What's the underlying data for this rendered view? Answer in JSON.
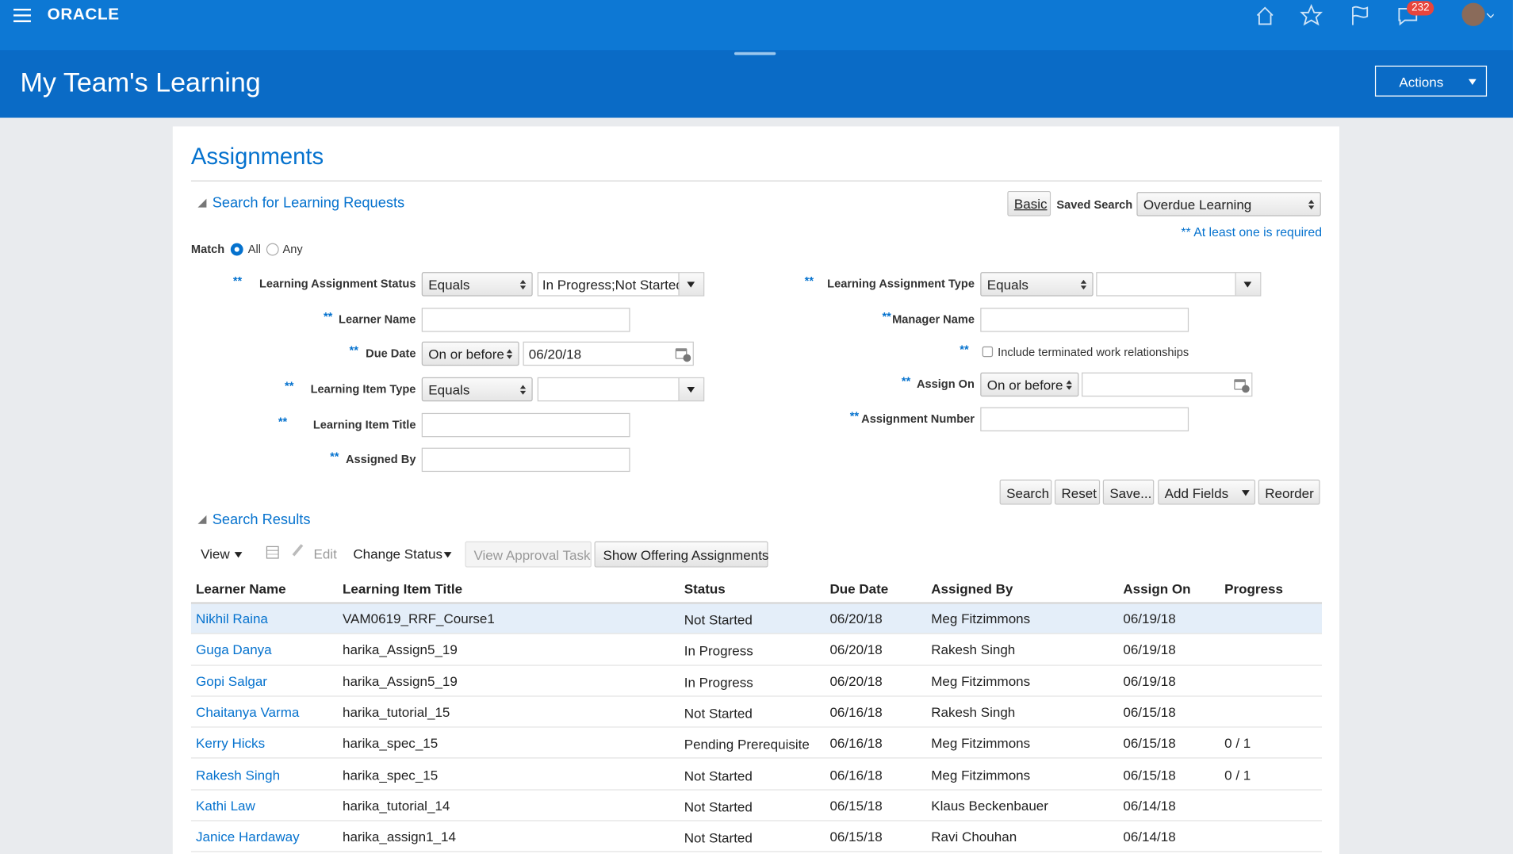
{
  "header": {
    "logo": "ORACLE",
    "notification_count": "232"
  },
  "page": {
    "title": "My Team's Learning",
    "actions": "Actions"
  },
  "panel": {
    "title": "Assignments"
  },
  "search": {
    "title": "Search for Learning Requests",
    "basic": "Basic",
    "saved_search_label": "Saved Search",
    "saved_search_value": "Overdue Learning",
    "required_note": "** At least one is required",
    "match": {
      "label": "Match",
      "all": "All",
      "any": "Any"
    },
    "left_fields": [
      {
        "marker": "**",
        "label": "Learning Assignment Status",
        "operator": "Equals",
        "value": "In Progress;Not Started"
      },
      {
        "marker": "**",
        "label": "Learner Name"
      },
      {
        "marker": "**",
        "label": "Due Date",
        "operator": "On or before",
        "value": "06/20/18"
      },
      {
        "marker": "**",
        "label": "Learning Item Type",
        "operator": "Equals"
      },
      {
        "marker": "**",
        "label": "Learning Item Title"
      },
      {
        "marker": "**",
        "label": "Assigned By"
      }
    ],
    "right_fields": [
      {
        "marker": "**",
        "label": "Learning Assignment Type",
        "operator": "Equals"
      },
      {
        "marker": "**",
        "label": "Manager Name"
      },
      {
        "marker": "**",
        "label": "Include terminated work relationships"
      },
      {
        "marker": "**",
        "label": "Assign On",
        "operator": "On or before"
      },
      {
        "marker": "**",
        "label": "Assignment Number"
      }
    ],
    "buttons": [
      "Search",
      "Reset",
      "Save...",
      "Add Fields",
      "Reorder"
    ]
  },
  "results": {
    "title": "Search Results",
    "toolbar": {
      "view": "View",
      "edit": "Edit",
      "change_status": "Change Status",
      "view_approval_task": "View Approval Task",
      "show_offering": "Show Offering Assignments"
    },
    "table": {
      "columns": [
        "Learner Name",
        "Learning Item Title",
        "Status",
        "Due Date",
        "Assigned By",
        "Assign On",
        "Progress"
      ],
      "rows": [
        [
          "Nikhil Raina",
          "VAM0619_RRF_Course1",
          "Not Started",
          "06/20/18",
          "Meg Fitzimmons",
          "06/19/18",
          null
        ],
        [
          "Guga Danya",
          "harika_Assign5_19",
          "In Progress",
          "06/20/18",
          "Rakesh Singh",
          "06/19/18",
          null
        ],
        [
          "Gopi Salgar",
          "harika_Assign5_19",
          "In Progress",
          "06/20/18",
          "Meg Fitzimmons",
          "06/19/18",
          null
        ],
        [
          "Chaitanya Varma",
          "harika_tutorial_15",
          "Not Started",
          "06/16/18",
          "Rakesh Singh",
          "06/15/18",
          null
        ],
        [
          "Kerry Hicks",
          "harika_spec_15",
          "Pending Prerequisite",
          "06/16/18",
          "Meg Fitzimmons",
          "06/15/18",
          "0 / 1"
        ],
        [
          "Rakesh Singh",
          "harika_spec_15",
          "Not Started",
          "06/16/18",
          "Meg Fitzimmons",
          "06/15/18",
          "0 / 1"
        ],
        [
          "Kathi Law",
          "harika_tutorial_14",
          "Not Started",
          "06/15/18",
          "Klaus Beckenbauer",
          "06/14/18",
          null
        ],
        [
          "Janice Hardaway",
          "harika_assign1_14",
          "Not Started",
          "06/15/18",
          "Ravi Chouhan",
          "06/14/18",
          null
        ]
      ]
    }
  }
}
